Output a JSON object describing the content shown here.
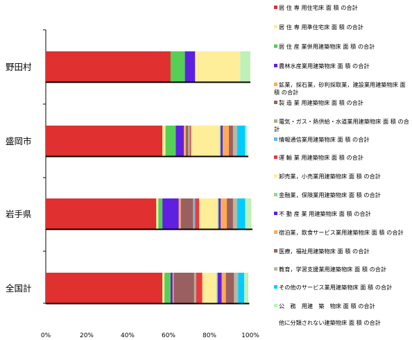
{
  "chart_data": {
    "type": "bar",
    "orientation": "horizontal",
    "stacked": true,
    "percent": true,
    "categories": [
      "野田村",
      "盛岡市",
      "岩手県",
      "全国計"
    ],
    "xlim": [
      0,
      100
    ],
    "xticks": [
      "0%",
      "20%",
      "40%",
      "60%",
      "80%",
      "100%"
    ],
    "legend_position": "right",
    "grid": false,
    "series": [
      {
        "name": "居 住 専 用住宅床 面 積 の合計",
        "color": "#e03030",
        "values": [
          61,
          57,
          54,
          57
        ]
      },
      {
        "name": "居 住 専 用準住宅床 面 積 の合計",
        "color": "#ffee99",
        "values": [
          0,
          1.5,
          1,
          1
        ]
      },
      {
        "name": "居 住 産 業併用建築物床 面 積 の合計",
        "color": "#55d055",
        "values": [
          7,
          5,
          2,
          3
        ]
      },
      {
        "name": "農林水産業用建築物床 面 積 の合計",
        "color": "#6020e0",
        "values": [
          5,
          4,
          8,
          1
        ]
      },
      {
        "name": "鉱業，採石業，砂利採取業，建設業用建築物床 面 積 の合計",
        "color": "#ffaa55",
        "values": [
          0,
          1,
          1,
          0.5
        ]
      },
      {
        "name": "製 造 業 用建築物床 面 積 の合計",
        "color": "#9a6060",
        "values": [
          0,
          1,
          6,
          10
        ]
      },
      {
        "name": "電気・ガス・熱供給・水道業用建築物床 面 積 の合計",
        "color": "#aab088",
        "values": [
          0,
          0.5,
          0.5,
          0.5
        ]
      },
      {
        "name": "情報通信業用建築物床 面 積 の合計",
        "color": "#66b6e8",
        "values": [
          0,
          0.5,
          0.5,
          0.5
        ]
      },
      {
        "name": "運 輸 業 用建築物床 面 積 の合計",
        "color": "#f03838",
        "values": [
          0,
          0.5,
          2,
          3
        ]
      },
      {
        "name": "卸売業，小売業用建築物床 面 積 の合計",
        "color": "#ffee99",
        "values": [
          22,
          14,
          9,
          7
        ]
      },
      {
        "name": "金融業，保険業用建築物床 面 積 の合計",
        "color": "#88dd88",
        "values": [
          0,
          0.5,
          0.5,
          0.5
        ]
      },
      {
        "name": "不 動 産 業 用建築物床 面 積 の合計",
        "color": "#6020e0",
        "values": [
          0,
          1,
          1,
          2
        ]
      },
      {
        "name": "宿泊業，飲食サービス業用建築物床 面 積 の合計",
        "color": "#ffaa55",
        "values": [
          0,
          3,
          3,
          2
        ]
      },
      {
        "name": "医療，福祉用建築物床 面 積 の合計",
        "color": "#9a6060",
        "values": [
          0,
          2,
          3,
          4
        ]
      },
      {
        "name": "教育，学習支援業用建築物床 面 積 の合計",
        "color": "#b8b8a0",
        "values": [
          0,
          2,
          2,
          2
        ]
      },
      {
        "name": "その他のサービス業用建築物床 面 積 の合計",
        "color": "#00ccff",
        "values": [
          0,
          4,
          4,
          3
        ]
      },
      {
        "name": "公　務　用建　築　物床 面 積 の合計",
        "color": "#bff0b8",
        "values": [
          5,
          1,
          3,
          2
        ]
      },
      {
        "name": "他に分類されない建築物床 面 積 の合計",
        "color": "#ffffff",
        "values": [
          0,
          0.5,
          0.5,
          0.5
        ]
      }
    ]
  }
}
